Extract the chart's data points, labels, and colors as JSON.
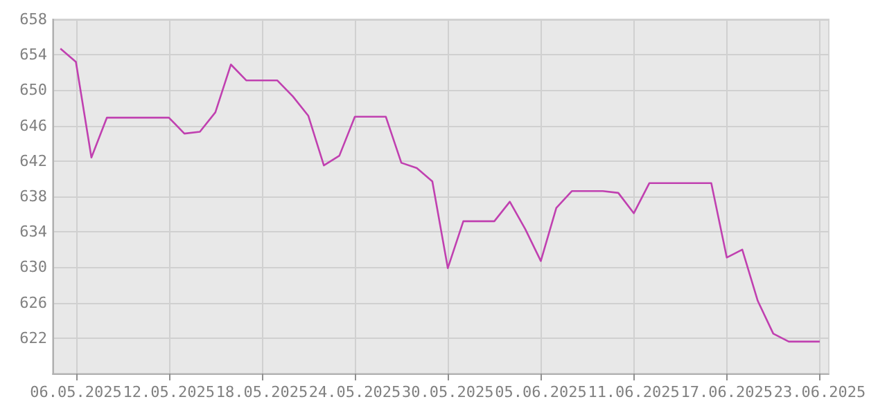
{
  "chart_data": {
    "type": "line",
    "x": [
      "2025-05-05",
      "2025-05-06",
      "2025-05-07",
      "2025-05-08",
      "2025-05-09",
      "2025-05-10",
      "2025-05-11",
      "2025-05-12",
      "2025-05-13",
      "2025-05-14",
      "2025-05-15",
      "2025-05-16",
      "2025-05-17",
      "2025-05-18",
      "2025-05-19",
      "2025-05-20",
      "2025-05-21",
      "2025-05-22",
      "2025-05-23",
      "2025-05-24",
      "2025-05-25",
      "2025-05-26",
      "2025-05-27",
      "2025-05-28",
      "2025-05-29",
      "2025-05-30",
      "2025-05-31",
      "2025-06-01",
      "2025-06-02",
      "2025-06-03",
      "2025-06-04",
      "2025-06-05",
      "2025-06-06",
      "2025-06-07",
      "2025-06-08",
      "2025-06-09",
      "2025-06-10",
      "2025-06-11",
      "2025-06-12",
      "2025-06-13",
      "2025-06-14",
      "2025-06-15",
      "2025-06-16",
      "2025-06-17",
      "2025-06-18",
      "2025-06-19",
      "2025-06-20",
      "2025-06-21",
      "2025-06-22",
      "2025-06-23"
    ],
    "series": [
      {
        "color": "#c040b0",
        "values": [
          654.7,
          653.2,
          642.4,
          646.9,
          646.9,
          646.9,
          646.9,
          646.9,
          645.1,
          645.3,
          647.5,
          652.9,
          651.1,
          651.1,
          651.1,
          649.3,
          647.1,
          641.5,
          642.6,
          647.0,
          647.0,
          647.0,
          641.8,
          641.2,
          639.7,
          629.9,
          635.2,
          635.2,
          635.2,
          637.4,
          634.3,
          630.7,
          636.7,
          638.6,
          638.6,
          638.6,
          638.4,
          636.1,
          639.5,
          639.5,
          639.5,
          639.5,
          639.5,
          631.1,
          632.0,
          626.2,
          622.5,
          621.6,
          621.6,
          621.6
        ]
      }
    ],
    "xlim": [
      "2025-05-04T12:00",
      "2025-06-23T14:00"
    ],
    "xticks": [
      {
        "value": "2025-05-06",
        "label": "06.05.2025"
      },
      {
        "value": "2025-05-12",
        "label": "12.05.2025"
      },
      {
        "value": "2025-05-18",
        "label": "18.05.2025"
      },
      {
        "value": "2025-05-24",
        "label": "24.05.2025"
      },
      {
        "value": "2025-05-30",
        "label": "30.05.2025"
      },
      {
        "value": "2025-06-05",
        "label": "05.06.2025"
      },
      {
        "value": "2025-06-11",
        "label": "11.06.2025"
      },
      {
        "value": "2025-06-17",
        "label": "17.06.2025"
      },
      {
        "value": "2025-06-23",
        "label": "23.06.2025"
      }
    ],
    "ylim": [
      618,
      658
    ],
    "yticks": [
      622,
      626,
      630,
      634,
      638,
      642,
      646,
      650,
      654,
      658
    ],
    "grid": true,
    "line_style": "solid",
    "marker": "none"
  }
}
